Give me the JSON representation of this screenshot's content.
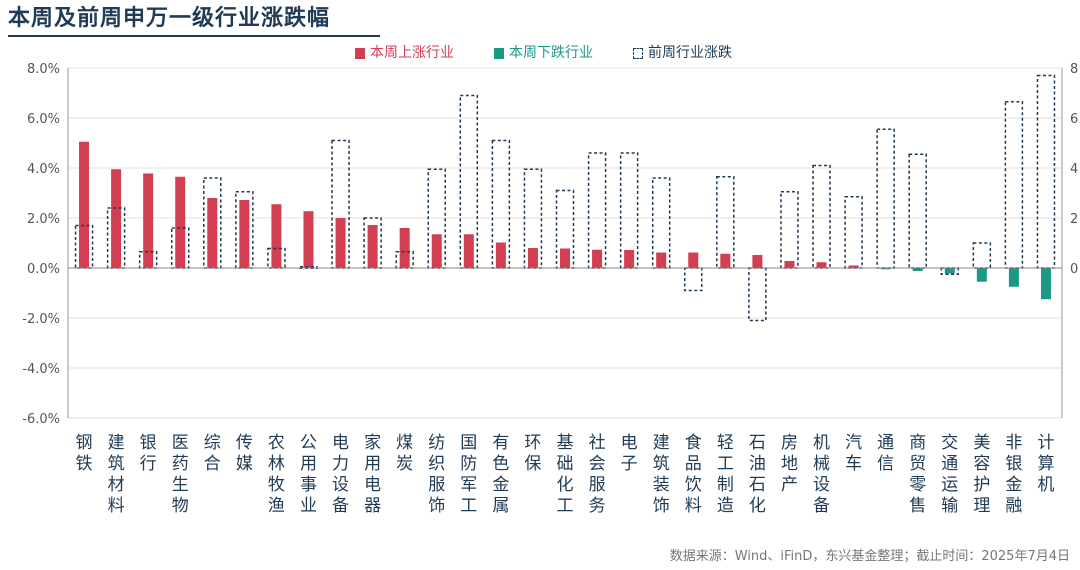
{
  "chart_data": {
    "type": "bar",
    "title": "本周及前周申万一级行业涨跌幅",
    "categories": [
      "钢铁",
      "建筑材料",
      "银行",
      "医药生物",
      "综合",
      "传媒",
      "农林牧渔",
      "公用事业",
      "电力设备",
      "家用电器",
      "煤炭",
      "纺织服饰",
      "国防军工",
      "有色金属",
      "环保",
      "基础化工",
      "社会服务",
      "电子",
      "建筑装饰",
      "食品饮料",
      "轻工制造",
      "石油石化",
      "房地产",
      "机械设备",
      "汽车",
      "通信",
      "商贸零售",
      "交通运输",
      "美容护理",
      "非银金融",
      "计算机"
    ],
    "series": [
      {
        "name": "本周上涨行业",
        "color": "#d23e52",
        "values": [
          5.05,
          3.95,
          3.78,
          3.65,
          2.8,
          2.72,
          2.55,
          2.27,
          2.0,
          1.72,
          1.6,
          1.35,
          1.35,
          1.02,
          0.8,
          0.78,
          0.73,
          0.72,
          0.62,
          0.62,
          0.57,
          0.52,
          0.28,
          0.23,
          0.1,
          null,
          null,
          null,
          null,
          null,
          null
        ]
      },
      {
        "name": "本周下跌行业",
        "color": "#1a9a86",
        "values": [
          null,
          null,
          null,
          null,
          null,
          null,
          null,
          null,
          null,
          null,
          null,
          null,
          null,
          null,
          null,
          null,
          null,
          null,
          null,
          null,
          null,
          null,
          null,
          null,
          null,
          -0.05,
          -0.12,
          -0.22,
          -0.55,
          -0.75,
          -1.25
        ]
      },
      {
        "name": "前周行业涨跌",
        "color": "#1f3b55",
        "values": [
          1.7,
          2.4,
          0.65,
          1.6,
          3.6,
          3.05,
          0.78,
          0.05,
          5.1,
          2.0,
          0.65,
          3.95,
          6.9,
          5.1,
          3.95,
          3.1,
          4.6,
          4.6,
          3.6,
          -0.9,
          3.65,
          -2.1,
          3.05,
          4.1,
          2.85,
          5.55,
          4.55,
          -0.25,
          1.0,
          6.65,
          7.7
        ]
      }
    ],
    "yticks_left": [
      "8.0%",
      "6.0%",
      "4.0%",
      "2.0%",
      "0.0%",
      "-2.0%",
      "-4.0%",
      "-6.0%"
    ],
    "yticks_right": [
      "8",
      "6",
      "4",
      "2",
      "0"
    ],
    "ylim": [
      -6,
      8
    ],
    "grid": true,
    "legend_position": "top"
  },
  "source_note": "数据来源：Wind、iFinD，东兴基金整理；截止时间：2025年7月4日"
}
